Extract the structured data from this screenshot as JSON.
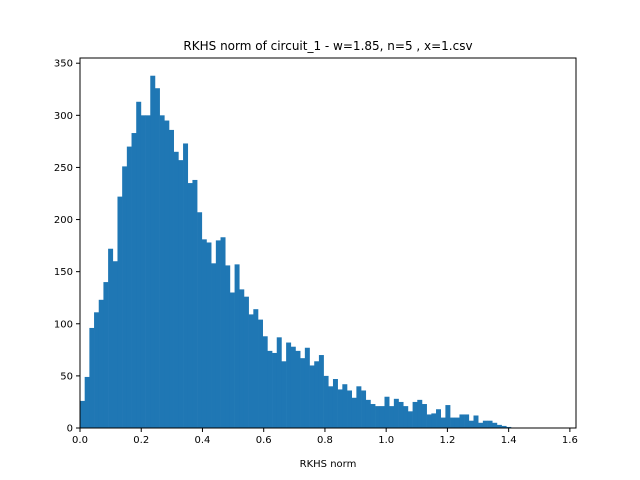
{
  "chart_data": {
    "type": "bar",
    "title": "RKHS norm of circuit_1 - w=1.85, n=5 , x=1.csv",
    "xlabel": "RKHS norm",
    "ylabel": "",
    "xlim": [
      0.0,
      1.62
    ],
    "ylim": [
      0,
      355
    ],
    "grid": false,
    "x_ticks": [
      0.0,
      0.2,
      0.4,
      0.6,
      0.8,
      1.0,
      1.2,
      1.4,
      1.6
    ],
    "x_tick_labels": [
      "0.0",
      "0.2",
      "0.4",
      "0.6",
      "0.8",
      "1.0",
      "1.2",
      "1.4",
      "1.6"
    ],
    "y_ticks": [
      0,
      50,
      100,
      150,
      200,
      250,
      300,
      350
    ],
    "y_tick_labels": [
      "0",
      "50",
      "100",
      "150",
      "200",
      "250",
      "300",
      "350"
    ],
    "bar_color": "#1f77b4",
    "bin_width": 0.0153,
    "bin_start": 0.0,
    "values": [
      26,
      49,
      96,
      111,
      123,
      140,
      172,
      160,
      222,
      251,
      270,
      283,
      313,
      300,
      300,
      338,
      326,
      300,
      295,
      286,
      265,
      257,
      273,
      235,
      238,
      207,
      181,
      178,
      158,
      180,
      183,
      156,
      130,
      157,
      133,
      126,
      109,
      114,
      104,
      88,
      74,
      72,
      87,
      64,
      82,
      78,
      74,
      67,
      77,
      60,
      64,
      70,
      50,
      40,
      47,
      37,
      42,
      36,
      29,
      40,
      36,
      27,
      23,
      21,
      21,
      30,
      21,
      28,
      25,
      21,
      16,
      25,
      27,
      23,
      13,
      14,
      18,
      10,
      22,
      10,
      10,
      13,
      13,
      7,
      12,
      5,
      7,
      7,
      5,
      3,
      2,
      1
    ]
  }
}
